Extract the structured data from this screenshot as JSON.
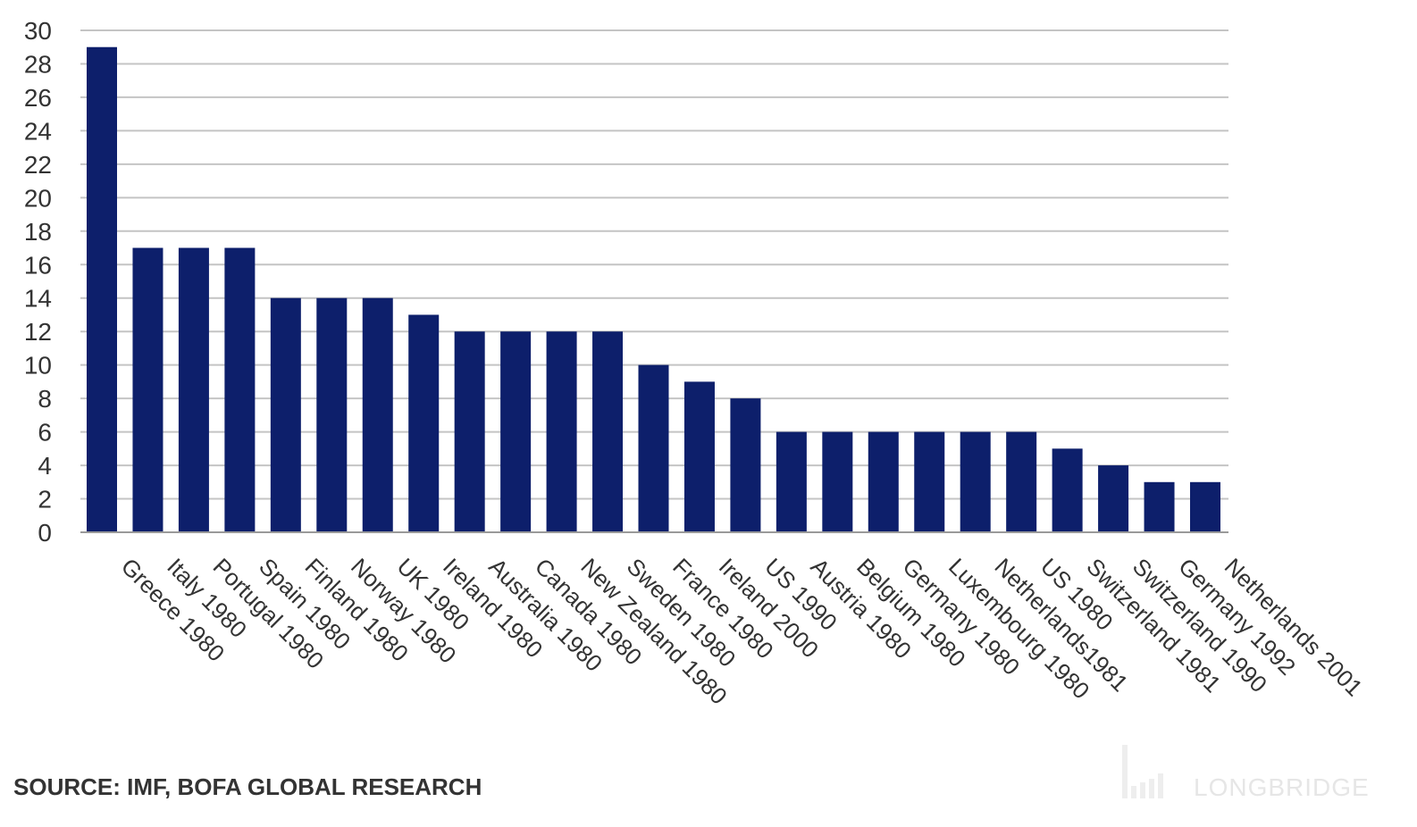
{
  "chart_data": {
    "type": "bar",
    "categories": [
      "Greece 1980",
      "Italy 1980",
      "Portugal 1980",
      "Spain 1980",
      "Finland 1980",
      "Norway 1980",
      "UK 1980",
      "Ireland 1980",
      "Australia 1980",
      "Canada 1980",
      "New Zealand 1980",
      "Sweden 1980",
      "France 1980",
      "Ireland 2000",
      "US 1990",
      "Austria 1980",
      "Belgium 1980",
      "Germany 1980",
      "Luxembourg 1980",
      "Netherlands1981",
      "US 1980",
      "Switzerland 1981",
      "Switzerland 1990",
      "Germany 1992",
      "Netherlands 2001"
    ],
    "values": [
      29,
      17,
      17,
      17,
      14,
      14,
      14,
      13,
      12,
      12,
      12,
      12,
      10,
      9,
      8,
      6,
      6,
      6,
      6,
      6,
      6,
      5,
      4,
      3,
      3
    ],
    "ylim": [
      0,
      30
    ],
    "yticks": [
      0,
      2,
      4,
      6,
      8,
      10,
      12,
      14,
      16,
      18,
      20,
      22,
      24,
      26,
      28,
      30
    ],
    "grid": true,
    "bar_color": "#0d1f6b",
    "grid_color": "#c4c4c4",
    "title": "",
    "xlabel": "",
    "ylabel": ""
  },
  "footer": {
    "source": "SOURCE: IMF, BOFA GLOBAL RESEARCH",
    "watermark": "LONGBRIDGE"
  }
}
